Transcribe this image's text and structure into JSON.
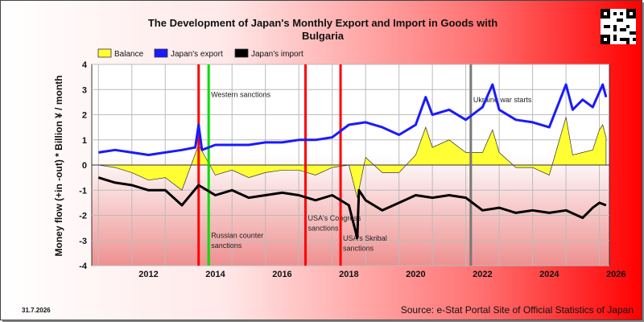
{
  "header": {
    "title_line1": "The Development of Japan's Monthly Export and Import in Goods with",
    "title_line2": "Bulgaria"
  },
  "footer": {
    "date": "31.7.2026",
    "source": "Source: e-Stat Portal Site of Official Statistics of Japan"
  },
  "qr_icon": "qr-code-icon",
  "colors": {
    "export": "#1a1aff",
    "import": "#000000",
    "balance_fill": "#ffff33",
    "red_marker": "#ff0000",
    "green_marker": "#00dd00",
    "gray_marker": "#777777"
  },
  "chart_data": {
    "type": "line",
    "ylabel": "Money flow (+in -out) * Billion ¥ / month",
    "ylim": [
      -4,
      4
    ],
    "xlim": [
      2010.8,
      2026.3
    ],
    "yticks": [
      -4,
      -3,
      -2,
      -1,
      0,
      1,
      2,
      3,
      4
    ],
    "xticks": [
      2012,
      2014,
      2016,
      2018,
      2020,
      2022,
      2024,
      2026
    ],
    "grid": true,
    "legend": {
      "placement": "top-left",
      "entries": [
        "Balance",
        "Japan's export",
        "Japan's import"
      ]
    },
    "series": [
      {
        "name": "Japan's export",
        "color": "#1a1aff",
        "points": [
          [
            2011.0,
            0.5
          ],
          [
            2011.5,
            0.6
          ],
          [
            2012.0,
            0.5
          ],
          [
            2012.5,
            0.4
          ],
          [
            2013.0,
            0.5
          ],
          [
            2013.5,
            0.6
          ],
          [
            2013.9,
            0.7
          ],
          [
            2014.0,
            1.6
          ],
          [
            2014.1,
            0.6
          ],
          [
            2014.5,
            0.8
          ],
          [
            2015.0,
            0.8
          ],
          [
            2015.5,
            0.8
          ],
          [
            2016.0,
            0.9
          ],
          [
            2016.5,
            0.9
          ],
          [
            2017.0,
            1.0
          ],
          [
            2017.5,
            1.0
          ],
          [
            2018.0,
            1.1
          ],
          [
            2018.5,
            1.6
          ],
          [
            2019.0,
            1.7
          ],
          [
            2019.5,
            1.5
          ],
          [
            2020.0,
            1.2
          ],
          [
            2020.5,
            1.6
          ],
          [
            2020.8,
            2.7
          ],
          [
            2021.0,
            2.0
          ],
          [
            2021.5,
            2.2
          ],
          [
            2022.0,
            1.8
          ],
          [
            2022.5,
            2.3
          ],
          [
            2022.8,
            3.2
          ],
          [
            2023.0,
            2.2
          ],
          [
            2023.5,
            1.8
          ],
          [
            2024.0,
            1.7
          ],
          [
            2024.5,
            1.5
          ],
          [
            2025.0,
            3.2
          ],
          [
            2025.2,
            2.2
          ],
          [
            2025.5,
            2.6
          ],
          [
            2025.8,
            2.3
          ],
          [
            2026.0,
            2.9
          ],
          [
            2026.1,
            3.2
          ],
          [
            2026.2,
            2.7
          ]
        ]
      },
      {
        "name": "Japan's import",
        "color": "#000000",
        "points": [
          [
            2011.0,
            -0.5
          ],
          [
            2011.5,
            -0.7
          ],
          [
            2012.0,
            -0.8
          ],
          [
            2012.5,
            -1.0
          ],
          [
            2013.0,
            -1.0
          ],
          [
            2013.5,
            -1.6
          ],
          [
            2014.0,
            -0.8
          ],
          [
            2014.5,
            -1.2
          ],
          [
            2015.0,
            -1.0
          ],
          [
            2015.5,
            -1.3
          ],
          [
            2016.0,
            -1.2
          ],
          [
            2016.5,
            -1.1
          ],
          [
            2017.0,
            -1.2
          ],
          [
            2017.5,
            -1.4
          ],
          [
            2018.0,
            -1.2
          ],
          [
            2018.5,
            -1.6
          ],
          [
            2018.75,
            -2.9
          ],
          [
            2018.8,
            -1.0
          ],
          [
            2019.0,
            -1.4
          ],
          [
            2019.5,
            -1.8
          ],
          [
            2020.0,
            -1.5
          ],
          [
            2020.5,
            -1.2
          ],
          [
            2021.0,
            -1.3
          ],
          [
            2021.5,
            -1.2
          ],
          [
            2022.0,
            -1.3
          ],
          [
            2022.5,
            -1.8
          ],
          [
            2023.0,
            -1.7
          ],
          [
            2023.5,
            -1.9
          ],
          [
            2024.0,
            -1.8
          ],
          [
            2024.5,
            -1.9
          ],
          [
            2025.0,
            -1.8
          ],
          [
            2025.5,
            -2.1
          ],
          [
            2025.8,
            -1.7
          ],
          [
            2026.0,
            -1.5
          ],
          [
            2026.2,
            -1.6
          ]
        ]
      },
      {
        "name": "Balance",
        "color": "#ffff33",
        "points": [
          [
            2011.0,
            0.0
          ],
          [
            2011.5,
            -0.1
          ],
          [
            2012.0,
            -0.3
          ],
          [
            2012.5,
            -0.6
          ],
          [
            2013.0,
            -0.5
          ],
          [
            2013.5,
            -1.0
          ],
          [
            2014.0,
            0.8
          ],
          [
            2014.5,
            -0.4
          ],
          [
            2015.0,
            -0.2
          ],
          [
            2015.5,
            -0.5
          ],
          [
            2016.0,
            -0.3
          ],
          [
            2016.5,
            -0.2
          ],
          [
            2017.0,
            -0.2
          ],
          [
            2017.5,
            -0.4
          ],
          [
            2018.0,
            -0.1
          ],
          [
            2018.5,
            0.0
          ],
          [
            2018.75,
            -1.3
          ],
          [
            2019.0,
            0.3
          ],
          [
            2019.5,
            -0.3
          ],
          [
            2020.0,
            -0.3
          ],
          [
            2020.5,
            0.4
          ],
          [
            2020.8,
            1.5
          ],
          [
            2021.0,
            0.7
          ],
          [
            2021.5,
            1.0
          ],
          [
            2022.0,
            0.5
          ],
          [
            2022.5,
            0.5
          ],
          [
            2022.8,
            1.4
          ],
          [
            2023.0,
            0.5
          ],
          [
            2023.5,
            -0.1
          ],
          [
            2024.0,
            -0.1
          ],
          [
            2024.5,
            -0.4
          ],
          [
            2025.0,
            1.9
          ],
          [
            2025.2,
            0.4
          ],
          [
            2025.5,
            0.5
          ],
          [
            2025.8,
            0.6
          ],
          [
            2026.0,
            1.4
          ],
          [
            2026.1,
            1.6
          ],
          [
            2026.2,
            1.1
          ]
        ]
      }
    ],
    "events": [
      {
        "x": 2014.0,
        "color": "#ff0000",
        "label": "",
        "label_y": null
      },
      {
        "x": 2014.3,
        "color": "#00dd00",
        "label": "Western sanctions",
        "label_y": 2.7
      },
      {
        "x": 2014.3,
        "color": "#00dd00",
        "label": "Russian counter",
        "label_y": -2.9
      },
      {
        "x": 2014.3,
        "color": "#00dd00",
        "label": "sanctions",
        "label_y": -3.3
      },
      {
        "x": 2017.2,
        "color": "#ff0000",
        "label": "USA's Congress",
        "label_y": -2.2
      },
      {
        "x": 2017.2,
        "color": "#ff0000",
        "label": "sanctions",
        "label_y": -2.6
      },
      {
        "x": 2018.25,
        "color": "#ff0000",
        "label": "USA's Skribal",
        "label_y": -3.0
      },
      {
        "x": 2018.25,
        "color": "#ff0000",
        "label": "sanctions",
        "label_y": -3.4
      },
      {
        "x": 2022.15,
        "color": "#777777",
        "label": "Ukraine war starts",
        "label_y": 2.5
      }
    ]
  }
}
